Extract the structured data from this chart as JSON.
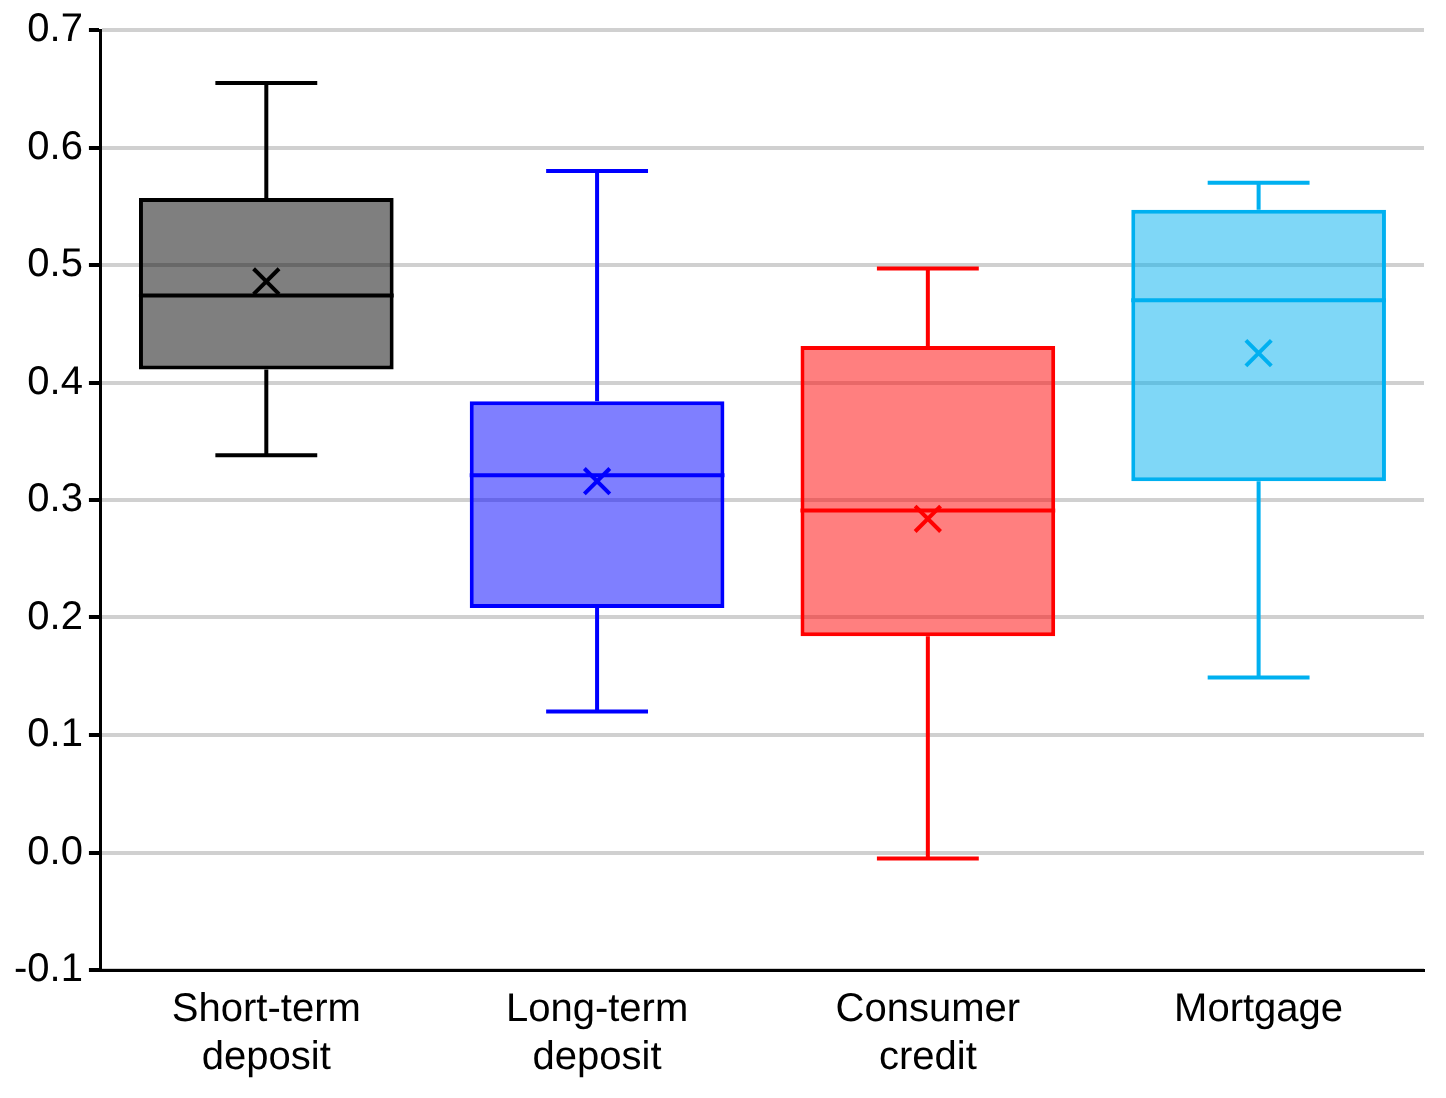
{
  "chart_data": {
    "type": "box",
    "categories": [
      "Short-term deposit",
      "Long-term deposit",
      "Consumer credit",
      "Mortgage"
    ],
    "boxes": [
      {
        "low": 0.338,
        "q1": 0.411,
        "median": 0.474,
        "q3": 0.557,
        "high": 0.655,
        "mean": 0.486
      },
      {
        "low": 0.12,
        "q1": 0.208,
        "median": 0.321,
        "q3": 0.384,
        "high": 0.58,
        "mean": 0.316
      },
      {
        "low": -0.005,
        "q1": 0.184,
        "median": 0.291,
        "q3": 0.431,
        "high": 0.497,
        "mean": 0.284
      },
      {
        "low": 0.149,
        "q1": 0.316,
        "median": 0.47,
        "q3": 0.547,
        "high": 0.57,
        "mean": 0.425
      }
    ],
    "colors": [
      "#000000",
      "#0000ff",
      "#ff0000",
      "#00b0f0"
    ],
    "ylim": [
      -0.1,
      0.7
    ],
    "yticks": [
      {
        "value": -0.1,
        "label": "-0.1"
      },
      {
        "value": 0,
        "label": "0.0"
      },
      0.1,
      0.2,
      0.3,
      0.4,
      0.5,
      0.6,
      0.7
    ],
    "grid": "y",
    "legend": false,
    "marker": "cross"
  }
}
